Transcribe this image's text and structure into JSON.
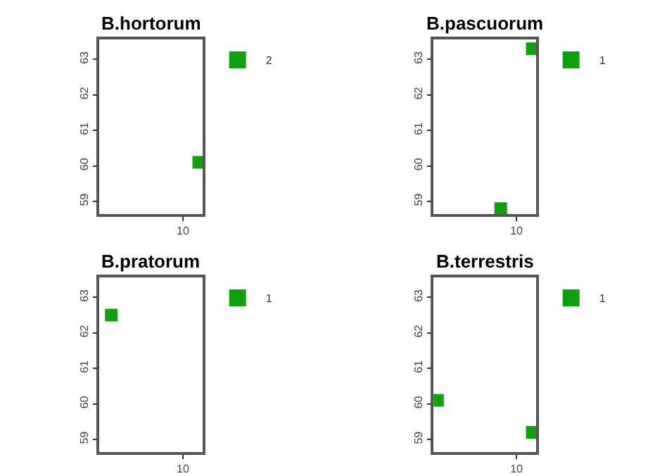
{
  "chart_data": [
    {
      "type": "scatter",
      "title": "B.hortorum",
      "categories": [
        null,
        null,
        null,
        null,
        null,
        null,
        null,
        null,
        null,
        null,
        "10",
        null,
        null
      ],
      "ylim": [
        58.64,
        63.56
      ],
      "yticks": [
        59,
        60,
        61,
        62,
        63
      ],
      "marker": "square",
      "legend": "top right",
      "series": [
        {
          "name": "2",
          "color": "#10a010",
          "values": [
            null,
            null,
            null,
            null,
            null,
            null,
            null,
            null,
            null,
            null,
            null,
            null,
            60.1
          ]
        }
      ]
    },
    {
      "type": "scatter",
      "title": "B.pascuorum",
      "categories": [
        null,
        null,
        null,
        null,
        null,
        null,
        null,
        null,
        null,
        null,
        "10",
        null,
        null
      ],
      "ylim": [
        58.64,
        63.56
      ],
      "yticks": [
        59,
        60,
        61,
        62,
        63
      ],
      "marker": "square",
      "legend": "top right",
      "series": [
        {
          "name": "1",
          "color": "#10a010",
          "values": [
            null,
            null,
            null,
            null,
            null,
            null,
            null,
            null,
            58.8,
            null,
            null,
            null,
            63.3
          ]
        }
      ]
    },
    {
      "type": "scatter",
      "title": "B.pratorum",
      "categories": [
        null,
        null,
        null,
        null,
        null,
        null,
        null,
        null,
        null,
        null,
        "10",
        null,
        null
      ],
      "ylim": [
        58.64,
        63.56
      ],
      "yticks": [
        59,
        60,
        61,
        62,
        63
      ],
      "marker": "square",
      "legend": "top right",
      "series": [
        {
          "name": "1",
          "color": "#10a010",
          "values": [
            null,
            62.5,
            null,
            null,
            null,
            null,
            null,
            null,
            null,
            null,
            null,
            null,
            null
          ]
        }
      ]
    },
    {
      "type": "scatter",
      "title": "B.terrestris",
      "categories": [
        null,
        null,
        null,
        null,
        null,
        null,
        null,
        null,
        null,
        null,
        "10",
        null,
        null
      ],
      "ylim": [
        58.64,
        63.56
      ],
      "yticks": [
        59,
        60,
        61,
        62,
        63
      ],
      "marker": "square",
      "legend": "top right",
      "series": [
        {
          "name": "1",
          "color": "#10a010",
          "values": [
            60.1,
            null,
            null,
            null,
            null,
            null,
            null,
            null,
            null,
            null,
            null,
            null,
            59.2
          ]
        }
      ]
    }
  ]
}
